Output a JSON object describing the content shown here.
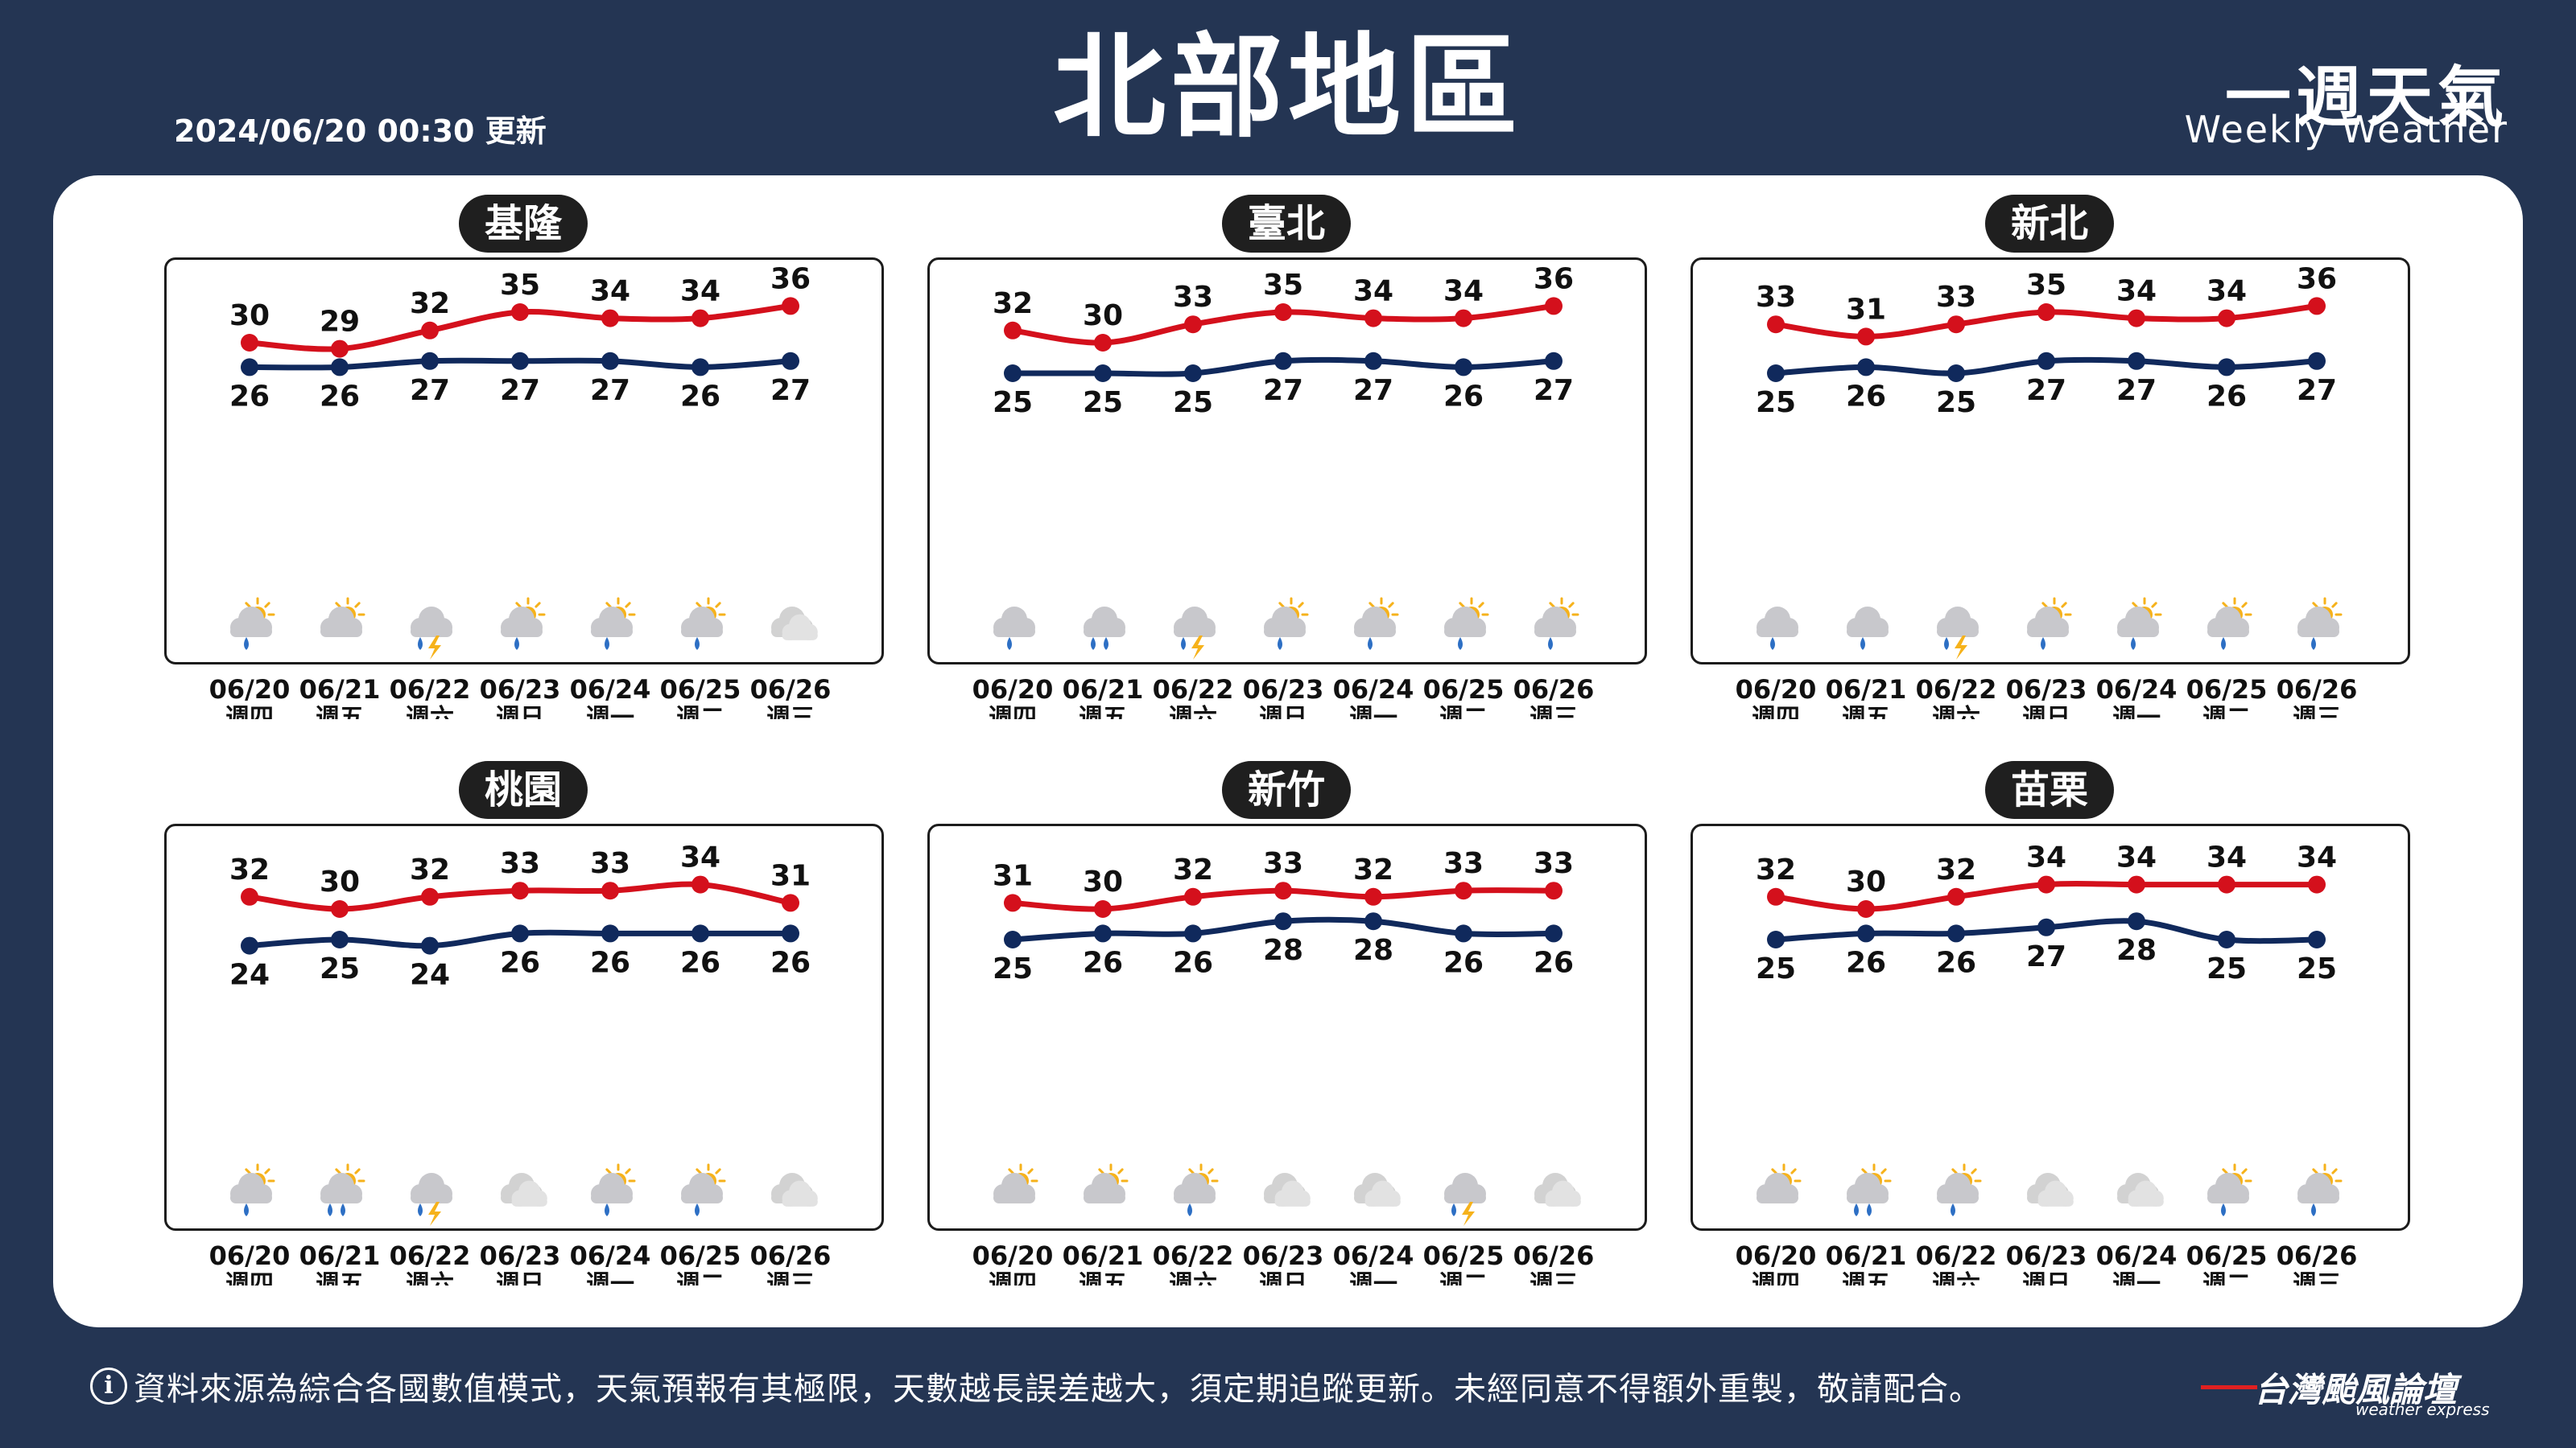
{
  "header": {
    "title": "北部地區",
    "updated": "2024/06/20 00:30 更新",
    "brand_zh": "一週天氣",
    "brand_en": "Weekly Weather"
  },
  "footer": {
    "note": "資料來源為綜合各國數值模式，天氣預報有其極限，天數越長誤差越大，須定期追蹤更新。未經同意不得額外重製，敬請配合。",
    "logo": "台灣颱風論壇",
    "logo_sub": "weather express"
  },
  "colors": {
    "high": "#d4101c",
    "low": "#10295c",
    "background": "#243553"
  },
  "chart_data": [
    {
      "type": "line",
      "title": "基隆",
      "x": [
        "06/20",
        "06/21",
        "06/22",
        "06/23",
        "06/24",
        "06/25",
        "06/26"
      ],
      "weekdays": [
        "週四",
        "週五",
        "週六",
        "週日",
        "週一",
        "週二",
        "週三"
      ],
      "series": [
        {
          "values": [
            30,
            29,
            32,
            35,
            34,
            34,
            36
          ]
        },
        {
          "values": [
            26,
            26,
            27,
            27,
            27,
            26,
            27
          ]
        }
      ],
      "icons": [
        "partly-sunny-rain",
        "partly-sunny-cloudy",
        "thunderstorm",
        "partly-sunny-rain",
        "partly-sunny-rain",
        "partly-sunny-rain",
        "cloudy"
      ]
    },
    {
      "type": "line",
      "title": "臺北",
      "x": [
        "06/20",
        "06/21",
        "06/22",
        "06/23",
        "06/24",
        "06/25",
        "06/26"
      ],
      "weekdays": [
        "週四",
        "週五",
        "週六",
        "週日",
        "週一",
        "週二",
        "週三"
      ],
      "series": [
        {
          "values": [
            32,
            30,
            33,
            35,
            34,
            34,
            36
          ]
        },
        {
          "values": [
            25,
            25,
            25,
            27,
            27,
            26,
            27
          ]
        }
      ],
      "icons": [
        "cloud-rain",
        "cloud-heavy-rain",
        "thunderstorm",
        "partly-sunny-rain",
        "partly-sunny-rain",
        "partly-sunny-rain",
        "partly-sunny-rain"
      ]
    },
    {
      "type": "line",
      "title": "新北",
      "x": [
        "06/20",
        "06/21",
        "06/22",
        "06/23",
        "06/24",
        "06/25",
        "06/26"
      ],
      "weekdays": [
        "週四",
        "週五",
        "週六",
        "週日",
        "週一",
        "週二",
        "週三"
      ],
      "series": [
        {
          "values": [
            33,
            31,
            33,
            35,
            34,
            34,
            36
          ]
        },
        {
          "values": [
            25,
            26,
            25,
            27,
            27,
            26,
            27
          ]
        }
      ],
      "icons": [
        "cloud-rain",
        "cloud-rain",
        "thunderstorm",
        "partly-sunny-rain",
        "partly-sunny-rain",
        "partly-sunny-rain",
        "partly-sunny-rain"
      ]
    },
    {
      "type": "line",
      "title": "桃園",
      "x": [
        "06/20",
        "06/21",
        "06/22",
        "06/23",
        "06/24",
        "06/25",
        "06/26"
      ],
      "weekdays": [
        "週四",
        "週五",
        "週六",
        "週日",
        "週一",
        "週二",
        "週三"
      ],
      "series": [
        {
          "values": [
            32,
            30,
            32,
            33,
            33,
            34,
            31
          ]
        },
        {
          "values": [
            24,
            25,
            24,
            26,
            26,
            26,
            26
          ]
        }
      ],
      "icons": [
        "partly-sunny-rain",
        "partly-sunny-heavy-rain",
        "thunderstorm",
        "cloudy",
        "partly-sunny-rain",
        "partly-sunny-rain",
        "cloudy"
      ]
    },
    {
      "type": "line",
      "title": "新竹",
      "x": [
        "06/20",
        "06/21",
        "06/22",
        "06/23",
        "06/24",
        "06/25",
        "06/26"
      ],
      "weekdays": [
        "週四",
        "週五",
        "週六",
        "週日",
        "週一",
        "週二",
        "週三"
      ],
      "series": [
        {
          "values": [
            31,
            30,
            32,
            33,
            32,
            33,
            33
          ]
        },
        {
          "values": [
            25,
            26,
            26,
            28,
            28,
            26,
            26
          ]
        }
      ],
      "icons": [
        "partly-sunny-cloudy",
        "partly-sunny-cloudy",
        "partly-sunny-rain",
        "cloudy",
        "cloudy",
        "thunderstorm",
        "cloudy"
      ]
    },
    {
      "type": "line",
      "title": "苗栗",
      "x": [
        "06/20",
        "06/21",
        "06/22",
        "06/23",
        "06/24",
        "06/25",
        "06/26"
      ],
      "weekdays": [
        "週四",
        "週五",
        "週六",
        "週日",
        "週一",
        "週二",
        "週三"
      ],
      "series": [
        {
          "values": [
            32,
            30,
            32,
            34,
            34,
            34,
            34
          ]
        },
        {
          "values": [
            25,
            26,
            26,
            27,
            28,
            25,
            25
          ]
        }
      ],
      "icons": [
        "partly-sunny-cloudy",
        "partly-sunny-heavy-rain",
        "partly-sunny-rain",
        "cloudy",
        "cloudy",
        "partly-sunny-rain",
        "partly-sunny-rain"
      ]
    }
  ]
}
